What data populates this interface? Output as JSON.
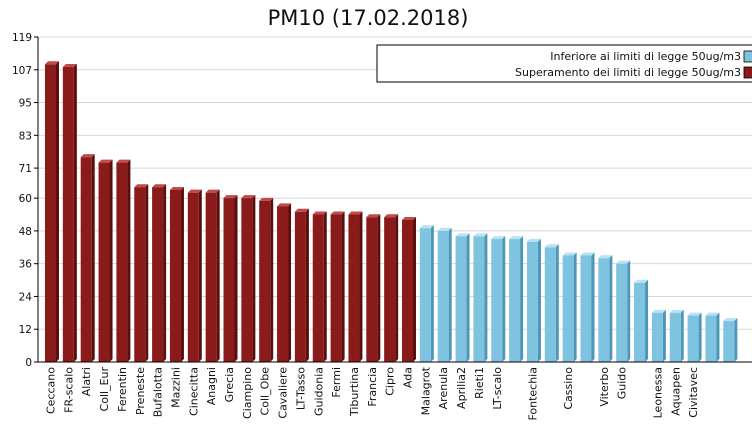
{
  "chart_data": {
    "type": "bar",
    "title": "PM10 (17.02.2018)",
    "xlabel": "",
    "ylabel": "",
    "ylim": [
      0,
      119
    ],
    "yticks": [
      0,
      12,
      24,
      36,
      48,
      60,
      71,
      83,
      95,
      107,
      119
    ],
    "grid": true,
    "legend_position": "top-right",
    "colors": {
      "above": "#8b1a1a",
      "below": "#7ec3e0"
    },
    "series": [
      {
        "name": "Inferiore ai limiti di legge 50ug/m3",
        "key": "below"
      },
      {
        "name": "Superamento dei limiti di legge 50ug/m3",
        "key": "above"
      }
    ],
    "categories": [
      "Ceccano",
      "FR-scalo",
      "Alatri",
      "Coll_Eur",
      "Ferentin",
      "Preneste",
      "Bufalotta",
      "Mazzini",
      "Cinecitta",
      "Anagni",
      "Grecia",
      "Ciampino",
      "Coll_Obe",
      "Cavaliere",
      "LT-Tasso",
      "Guidonia",
      "Fermi",
      "Tiburtina",
      "Francia",
      "Cipro",
      "Ada",
      "Malagrot",
      "Arenula",
      "Aprilia2",
      "Rieti1",
      "LT-scalo",
      "",
      "Fontechia",
      "",
      "Cassino",
      "",
      "Viterbo",
      "Guido",
      "",
      "Leonessa",
      "Aquapen",
      "Civitavec",
      "",
      ""
    ],
    "values": [
      109,
      108,
      75,
      73,
      73,
      64,
      64,
      63,
      62,
      62,
      60,
      60,
      59,
      57,
      55,
      54,
      54,
      54,
      53,
      53,
      52,
      49,
      48,
      46,
      46,
      45,
      45,
      44,
      42,
      39,
      39,
      38,
      36,
      29,
      18,
      18,
      17,
      17,
      15
    ],
    "status": [
      "above",
      "above",
      "above",
      "above",
      "above",
      "above",
      "above",
      "above",
      "above",
      "above",
      "above",
      "above",
      "above",
      "above",
      "above",
      "above",
      "above",
      "above",
      "above",
      "above",
      "above",
      "below",
      "below",
      "below",
      "below",
      "below",
      "below",
      "below",
      "below",
      "below",
      "below",
      "below",
      "below",
      "below",
      "below",
      "below",
      "below",
      "below",
      "below"
    ]
  }
}
